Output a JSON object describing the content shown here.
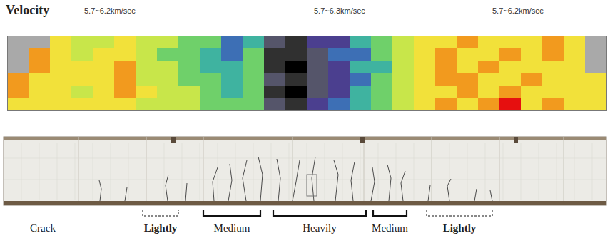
{
  "chart_data": {
    "type": "heatmap",
    "title": "Velocity",
    "annotations": [
      "5.7~6.2km/sec",
      "5.7~6.3km/sec",
      "5.7~6.2km/sec"
    ],
    "tick_labels": false,
    "cells": [
      [
        null,
        null,
        6.0,
        5.8,
        5.8,
        6.0,
        5.8,
        5.8,
        5.6,
        5.6,
        5.2,
        5.4,
        4.8,
        4.6,
        5.0,
        5.0,
        5.4,
        5.6,
        5.8,
        6.0,
        6.0,
        6.2,
        6.0,
        6.0,
        6.0,
        6.2,
        6.0,
        null
      ],
      [
        null,
        6.2,
        6.0,
        5.8,
        6.0,
        6.0,
        5.8,
        5.6,
        5.6,
        5.4,
        5.2,
        5.6,
        4.6,
        4.6,
        4.8,
        5.2,
        5.2,
        5.6,
        5.8,
        6.0,
        6.2,
        6.0,
        6.0,
        6.2,
        6.0,
        6.2,
        6.0,
        null
      ],
      [
        null,
        6.2,
        6.0,
        6.0,
        6.0,
        6.2,
        5.8,
        5.8,
        5.6,
        5.4,
        5.4,
        5.6,
        4.6,
        4.4,
        4.8,
        5.0,
        5.4,
        5.4,
        5.8,
        6.0,
        6.2,
        6.0,
        6.2,
        6.0,
        6.0,
        6.0,
        6.0,
        null
      ],
      [
        6.2,
        6.0,
        6.0,
        6.0,
        6.0,
        6.2,
        5.8,
        5.8,
        5.6,
        5.6,
        5.4,
        5.6,
        4.8,
        4.6,
        4.8,
        5.0,
        5.2,
        5.6,
        5.8,
        6.0,
        6.2,
        6.2,
        6.0,
        6.0,
        6.2,
        6.0,
        6.0,
        6.0
      ],
      [
        6.2,
        6.0,
        6.0,
        5.8,
        6.0,
        6.2,
        6.0,
        5.8,
        5.8,
        5.6,
        5.4,
        5.6,
        4.6,
        4.4,
        4.8,
        5.0,
        5.4,
        5.6,
        5.8,
        6.0,
        6.0,
        6.2,
        6.0,
        6.2,
        6.0,
        6.0,
        6.0,
        6.0
      ],
      [
        6.0,
        6.0,
        6.0,
        6.0,
        6.0,
        6.0,
        5.8,
        5.8,
        5.8,
        5.6,
        5.6,
        5.6,
        4.8,
        4.6,
        5.0,
        5.2,
        5.4,
        5.6,
        5.8,
        6.0,
        6.2,
        6.0,
        6.2,
        6.4,
        6.0,
        6.2,
        6.0,
        6.0
      ]
    ],
    "color_scale": {
      "domain": [
        4.4,
        4.6,
        4.8,
        5.0,
        5.2,
        5.4,
        5.6,
        5.8,
        6.0,
        6.2,
        6.4
      ],
      "range": [
        "#000000",
        "#303030",
        "#55556a",
        "#4b3f8f",
        "#3d6fb5",
        "#3fb3a0",
        "#6fd06a",
        "#c8e64a",
        "#f2e13a",
        "#f29a1e",
        "#e60f0f"
      ]
    }
  },
  "photo": {
    "row_label": "Crack",
    "zones": [
      {
        "label": "Lightly",
        "line_style": "dashed"
      },
      {
        "label": "Medium",
        "line_style": "solid"
      },
      {
        "label": "Heavily",
        "line_style": "solid"
      },
      {
        "label": "Medium",
        "line_style": "solid"
      },
      {
        "label": "Lightly",
        "line_style": "dashed"
      }
    ]
  }
}
